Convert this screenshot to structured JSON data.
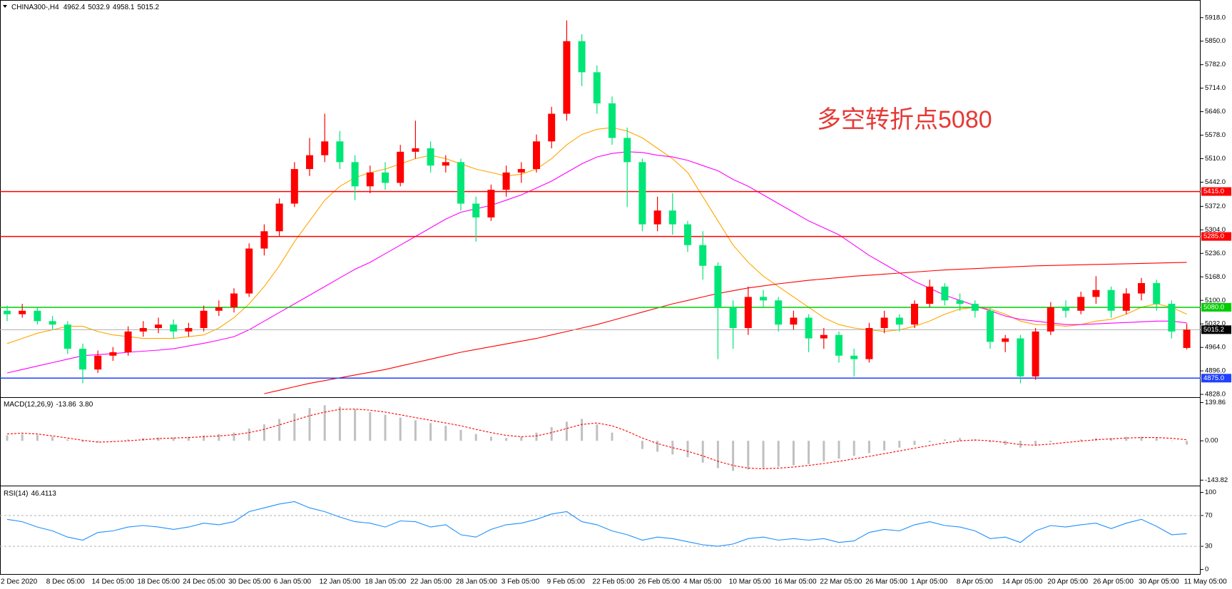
{
  "chart_data": {
    "type": "candlestick",
    "symbol": "CHINA300-,H4",
    "last_ohlc": [
      4962.4,
      5032.9,
      4958.1,
      5015.2
    ],
    "annotation": "多空转折点5080",
    "x_labels": [
      "2 Dec 2020",
      "8 Dec 05:00",
      "14 Dec 05:00",
      "18 Dec 05:00",
      "24 Dec 05:00",
      "30 Dec 05:00",
      "6 Jan 05:00",
      "12 Jan 05:00",
      "18 Jan 05:00",
      "22 Jan 05:00",
      "28 Jan 05:00",
      "3 Feb 05:00",
      "9 Feb 05:00",
      "22 Feb 05:00",
      "26 Feb 05:00",
      "4 Mar 05:00",
      "10 Mar 05:00",
      "16 Mar 05:00",
      "22 Mar 05:00",
      "26 Mar 05:00",
      "1 Apr 05:00",
      "8 Apr 05:00",
      "14 Apr 05:00",
      "20 Apr 05:00",
      "26 Apr 05:00",
      "30 Apr 05:00",
      "11 May 05:00"
    ],
    "up_color": "#ff0000",
    "down_color": "#00e676",
    "ylim": [
      4822,
      5934
    ],
    "yticks": [
      {
        "value": 5918,
        "label": "5918.0"
      },
      {
        "value": 5850,
        "label": "5850.0"
      },
      {
        "value": 5782,
        "label": "5782.0"
      },
      {
        "value": 5714,
        "label": "5714.0"
      },
      {
        "value": 5646,
        "label": "5646.0"
      },
      {
        "value": 5578,
        "label": "5578.0"
      },
      {
        "value": 5510,
        "label": "5510.0"
      },
      {
        "value": 5442,
        "label": "5442.0"
      },
      {
        "value": 5372,
        "label": "5372.0"
      },
      {
        "value": 5304,
        "label": "5304.0"
      },
      {
        "value": 5236,
        "label": "5236.0"
      },
      {
        "value": 5168,
        "label": "5168.0"
      },
      {
        "value": 5100,
        "label": "5100.0"
      },
      {
        "value": 5032,
        "label": "5032.0"
      },
      {
        "value": 4964,
        "label": "4964.0"
      },
      {
        "value": 4896,
        "label": "4896.0"
      },
      {
        "value": 4828,
        "label": "4828.0"
      }
    ],
    "levels": [
      {
        "value": 5415,
        "label": "5415.0",
        "color": "#ff0000"
      },
      {
        "value": 5285,
        "label": "5285.0",
        "color": "#ff0000"
      },
      {
        "value": 5080,
        "label": "5080.0",
        "color": "#00cc00"
      },
      {
        "value": 5015.2,
        "color": "#b0b0b0"
      },
      {
        "value": 4875,
        "label": "4875.0",
        "color": "#2040ff"
      }
    ],
    "ohlc": [
      [
        5070,
        5085,
        5040,
        5060
      ],
      [
        5060,
        5090,
        5050,
        5070
      ],
      [
        5070,
        5080,
        5030,
        5040
      ],
      [
        5040,
        5055,
        5015,
        5030
      ],
      [
        5030,
        5040,
        4945,
        4960
      ],
      [
        4960,
        4975,
        4860,
        4900
      ],
      [
        4900,
        4955,
        4890,
        4940
      ],
      [
        4940,
        4965,
        4925,
        4950
      ],
      [
        4950,
        5025,
        4940,
        5010
      ],
      [
        5010,
        5040,
        4995,
        5020
      ],
      [
        5020,
        5050,
        5005,
        5030
      ],
      [
        5030,
        5045,
        4990,
        5010
      ],
      [
        5010,
        5035,
        4995,
        5020
      ],
      [
        5020,
        5085,
        5010,
        5070
      ],
      [
        5070,
        5100,
        5055,
        5080
      ],
      [
        5080,
        5135,
        5065,
        5120
      ],
      [
        5120,
        5265,
        5110,
        5250
      ],
      [
        5250,
        5320,
        5230,
        5300
      ],
      [
        5300,
        5395,
        5285,
        5380
      ],
      [
        5380,
        5500,
        5370,
        5480
      ],
      [
        5480,
        5570,
        5460,
        5520
      ],
      [
        5520,
        5640,
        5500,
        5560
      ],
      [
        5560,
        5590,
        5480,
        5500
      ],
      [
        5500,
        5520,
        5390,
        5430
      ],
      [
        5430,
        5490,
        5410,
        5470
      ],
      [
        5470,
        5500,
        5420,
        5440
      ],
      [
        5440,
        5550,
        5430,
        5530
      ],
      [
        5530,
        5620,
        5510,
        5540
      ],
      [
        5540,
        5560,
        5470,
        5490
      ],
      [
        5490,
        5520,
        5470,
        5500
      ],
      [
        5500,
        5510,
        5360,
        5380
      ],
      [
        5380,
        5400,
        5270,
        5340
      ],
      [
        5340,
        5435,
        5330,
        5420
      ],
      [
        5420,
        5490,
        5400,
        5470
      ],
      [
        5470,
        5500,
        5440,
        5480
      ],
      [
        5480,
        5580,
        5470,
        5560
      ],
      [
        5560,
        5660,
        5540,
        5640
      ],
      [
        5640,
        5910,
        5620,
        5850
      ],
      [
        5850,
        5870,
        5720,
        5760
      ],
      [
        5760,
        5780,
        5640,
        5670
      ],
      [
        5670,
        5690,
        5550,
        5570
      ],
      [
        5570,
        5600,
        5370,
        5500
      ],
      [
        5500,
        5510,
        5300,
        5320
      ],
      [
        5320,
        5400,
        5300,
        5360
      ],
      [
        5360,
        5410,
        5290,
        5320
      ],
      [
        5320,
        5330,
        5240,
        5260
      ],
      [
        5260,
        5300,
        5160,
        5200
      ],
      [
        5200,
        5210,
        4930,
        5080
      ],
      [
        5080,
        5100,
        4960,
        5020
      ],
      [
        5020,
        5140,
        5000,
        5110
      ],
      [
        5110,
        5130,
        5080,
        5100
      ],
      [
        5100,
        5110,
        5010,
        5030
      ],
      [
        5030,
        5070,
        5015,
        5050
      ],
      [
        5050,
        5060,
        4950,
        4990
      ],
      [
        4990,
        5020,
        4960,
        5000
      ],
      [
        5000,
        5010,
        4920,
        4940
      ],
      [
        4940,
        4960,
        4880,
        4930
      ],
      [
        4930,
        5035,
        4920,
        5020
      ],
      [
        5020,
        5070,
        5005,
        5050
      ],
      [
        5050,
        5060,
        5010,
        5030
      ],
      [
        5030,
        5100,
        5020,
        5090
      ],
      [
        5090,
        5160,
        5080,
        5140
      ],
      [
        5140,
        5150,
        5085,
        5100
      ],
      [
        5100,
        5120,
        5070,
        5090
      ],
      [
        5090,
        5100,
        5050,
        5070
      ],
      [
        5070,
        5080,
        4960,
        4980
      ],
      [
        4980,
        5000,
        4950,
        4990
      ],
      [
        4990,
        5000,
        4860,
        4880
      ],
      [
        4880,
        5020,
        4870,
        5010
      ],
      [
        5010,
        5095,
        5000,
        5080
      ],
      [
        5080,
        5100,
        5050,
        5070
      ],
      [
        5070,
        5125,
        5060,
        5110
      ],
      [
        5110,
        5170,
        5090,
        5130
      ],
      [
        5130,
        5140,
        5050,
        5070
      ],
      [
        5070,
        5135,
        5060,
        5120
      ],
      [
        5120,
        5165,
        5100,
        5150
      ],
      [
        5150,
        5160,
        5070,
        5090
      ],
      [
        5090,
        5100,
        4990,
        5010
      ],
      [
        4962.4,
        5032.9,
        4958.1,
        5015.2
      ]
    ],
    "ma": [
      {
        "color": "#ffa500",
        "values": [
          4975,
          4990,
          5005,
          5015,
          5025,
          5025,
          5010,
          5000,
          4995,
          4990,
          4990,
          4990,
          4995,
          5000,
          5020,
          5050,
          5090,
          5140,
          5200,
          5270,
          5330,
          5390,
          5430,
          5455,
          5470,
          5480,
          5495,
          5510,
          5520,
          5510,
          5495,
          5480,
          5470,
          5460,
          5465,
          5480,
          5510,
          5550,
          5580,
          5595,
          5600,
          5590,
          5570,
          5540,
          5510,
          5470,
          5400,
          5330,
          5260,
          5210,
          5170,
          5140,
          5110,
          5080,
          5050,
          5030,
          5020,
          5015,
          5010,
          5015,
          5025,
          5040,
          5060,
          5075,
          5080,
          5075,
          5060,
          5040,
          5030,
          5030,
          5025,
          5030,
          5040,
          5045,
          5060,
          5080,
          5090,
          5080,
          5060
        ]
      },
      {
        "color": "#ff00ff",
        "values": [
          4890,
          4900,
          4910,
          4920,
          4930,
          4940,
          4943,
          4946,
          4950,
          4953,
          4956,
          4960,
          4968,
          4976,
          4985,
          4995,
          5015,
          5040,
          5065,
          5090,
          5115,
          5140,
          5165,
          5190,
          5210,
          5235,
          5260,
          5285,
          5310,
          5335,
          5355,
          5365,
          5375,
          5390,
          5405,
          5425,
          5445,
          5470,
          5495,
          5515,
          5525,
          5530,
          5528,
          5520,
          5515,
          5505,
          5490,
          5475,
          5450,
          5430,
          5405,
          5380,
          5355,
          5330,
          5310,
          5290,
          5260,
          5230,
          5205,
          5180,
          5155,
          5135,
          5115,
          5100,
          5085,
          5070,
          5055,
          5045,
          5040,
          5035,
          5030,
          5030,
          5032,
          5034,
          5036,
          5038,
          5040,
          5040,
          5035
        ]
      },
      {
        "color": "#ff0000",
        "values": [
          null,
          null,
          null,
          null,
          null,
          null,
          null,
          null,
          null,
          null,
          null,
          null,
          null,
          null,
          null,
          null,
          null,
          4830,
          4840,
          4850,
          4860,
          4868,
          4876,
          4884,
          4892,
          4900,
          4910,
          4920,
          4930,
          4940,
          4950,
          4958,
          4966,
          4974,
          4982,
          4990,
          5000,
          5010,
          5020,
          5030,
          5042,
          5054,
          5066,
          5078,
          5090,
          5100,
          5110,
          5120,
          5128,
          5136,
          5142,
          5148,
          5153,
          5158,
          5162,
          5166,
          5170,
          5173,
          5176,
          5179,
          5182,
          5185,
          5188,
          5190,
          5192,
          5194,
          5196,
          5198,
          5200,
          5201,
          5202,
          5203,
          5204,
          5205,
          5206,
          5207,
          5208,
          5209,
          5210
        ]
      }
    ],
    "macd": {
      "label": "MACD(12,26,9)",
      "readout": [
        -13.86,
        {
          "value": 3.8,
          "label": "3.80"
        }
      ],
      "ylim": [
        -161.2,
        154.3
      ],
      "yticks": [
        139.86,
        {
          "value": 0,
          "label": "0.00"
        },
        -143.82
      ],
      "hist_color": "#c0c0c0",
      "signal_color": "#ff0000",
      "histogram": [
        20,
        25,
        22,
        15,
        5,
        -5,
        -5,
        0,
        5,
        10,
        12,
        12,
        15,
        20,
        25,
        30,
        45,
        60,
        80,
        100,
        120,
        130,
        125,
        115,
        105,
        95,
        85,
        75,
        65,
        55,
        40,
        25,
        15,
        10,
        15,
        30,
        50,
        70,
        80,
        60,
        30,
        0,
        -30,
        -40,
        -50,
        -60,
        -80,
        -100,
        -110,
        -105,
        -100,
        -95,
        -90,
        -85,
        -75,
        -65,
        -55,
        -45,
        -35,
        -25,
        -15,
        -5,
        5,
        10,
        5,
        -5,
        -15,
        -25,
        -15,
        -5,
        0,
        5,
        10,
        10,
        15,
        15,
        10,
        0,
        -13.86
      ],
      "signal": [
        25,
        28,
        25,
        18,
        10,
        2,
        -5,
        -3,
        0,
        4,
        8,
        10,
        12,
        15,
        18,
        22,
        30,
        42,
        58,
        75,
        92,
        105,
        115,
        116,
        112,
        105,
        95,
        85,
        75,
        65,
        55,
        42,
        30,
        20,
        15,
        18,
        30,
        45,
        60,
        65,
        55,
        35,
        10,
        -10,
        -25,
        -38,
        -55,
        -75,
        -90,
        -100,
        -102,
        -100,
        -96,
        -90,
        -83,
        -75,
        -66,
        -57,
        -47,
        -37,
        -27,
        -17,
        -8,
        0,
        3,
        0,
        -6,
        -14,
        -16,
        -12,
        -6,
        -1,
        4,
        7,
        10,
        12,
        12,
        9,
        3.8
      ]
    },
    "rsi": {
      "label": "RSI(14)",
      "readout": 46.4113,
      "ylim": [
        -6,
        107
      ],
      "yticks": [
        100,
        70,
        30,
        0
      ],
      "levels": [
        70,
        30
      ],
      "color": "#1e90ff",
      "values": [
        65,
        62,
        55,
        50,
        42,
        38,
        48,
        50,
        55,
        57,
        55,
        52,
        55,
        60,
        58,
        62,
        75,
        80,
        85,
        88,
        80,
        75,
        68,
        62,
        60,
        55,
        63,
        62,
        55,
        58,
        45,
        42,
        52,
        58,
        60,
        65,
        72,
        75,
        62,
        58,
        50,
        45,
        38,
        42,
        40,
        36,
        32,
        30,
        33,
        40,
        42,
        38,
        40,
        38,
        40,
        35,
        37,
        48,
        52,
        50,
        58,
        62,
        57,
        55,
        50,
        40,
        42,
        35,
        50,
        57,
        55,
        58,
        60,
        53,
        60,
        65,
        56,
        45,
        46.4113
      ]
    }
  }
}
